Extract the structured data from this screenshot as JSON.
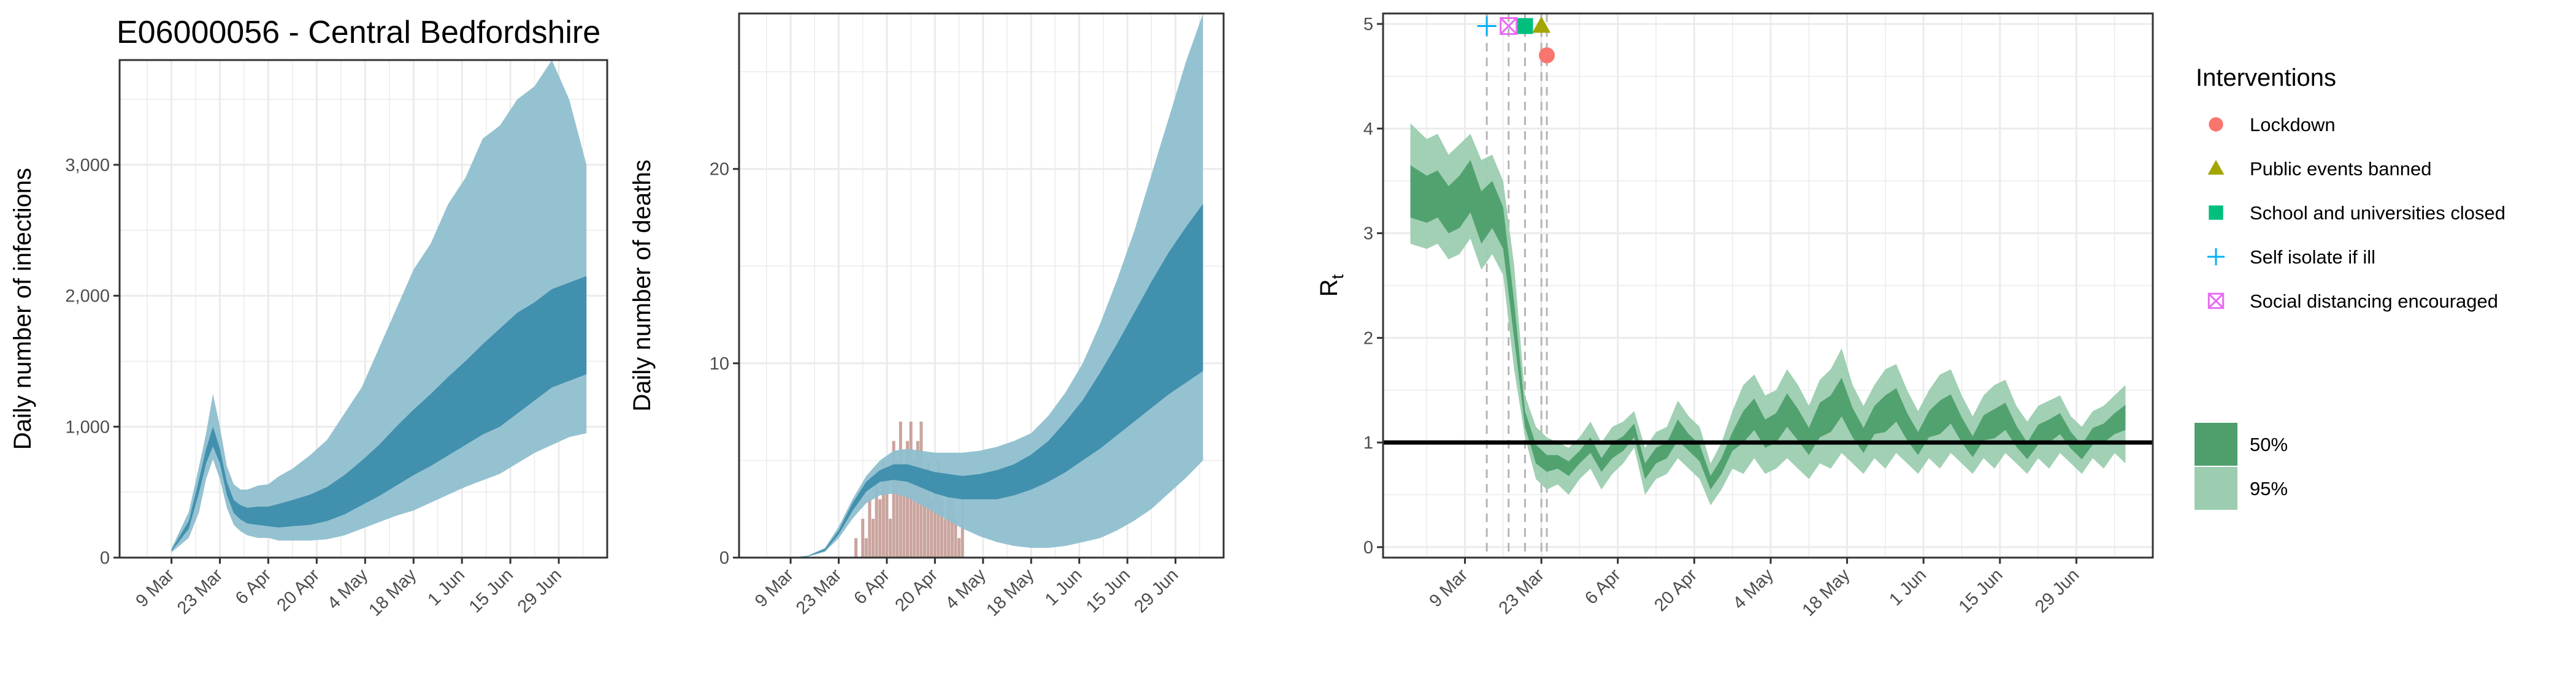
{
  "colors": {
    "infections_ci95": "#8fbfcf",
    "infections_ci50": "#3c8dac",
    "deaths_ci95": "#8fbfcf",
    "deaths_ci50": "#3c8dac",
    "deaths_bars": "#c49a93",
    "rt_ci95": "#9ccdb0",
    "rt_ci50": "#4e9f6c",
    "rt_reference": "#000000",
    "lockdown": "#f8766d",
    "public_events": "#a3a500",
    "schools": "#00bf7d",
    "self_isolate": "#00b0f6",
    "social_distancing": "#e76bf3",
    "grid": "#ebebeb",
    "panel_border": "#333333"
  },
  "chart_data": [
    {
      "id": "infections",
      "type": "area",
      "title": "E06000056 - Central Bedfordshire",
      "xlabel": "",
      "ylabel": "Daily number of infections",
      "x_ticks": [
        "9 Mar",
        "23 Mar",
        "6 Apr",
        "20 Apr",
        "4 May",
        "18 May",
        "1 Jun",
        "15 Jun",
        "29 Jun"
      ],
      "y_ticks": [
        "0",
        "1,000",
        "2,000",
        "3,000"
      ],
      "y_tick_values": [
        0,
        1000,
        2000,
        3000
      ],
      "ylim": [
        0,
        3800
      ],
      "xlim_days": [
        -15,
        126
      ],
      "grid": true,
      "series": [
        {
          "name": "95%",
          "band": "ci95",
          "x_days": [
            0,
            5,
            8,
            10,
            12,
            14,
            16,
            18,
            20,
            22,
            25,
            28,
            31,
            35,
            40,
            45,
            50,
            55,
            60,
            65,
            70,
            75,
            80,
            85,
            90,
            95,
            100,
            105,
            110,
            115,
            120
          ],
          "lower": [
            40,
            150,
            350,
            600,
            750,
            600,
            380,
            250,
            200,
            170,
            150,
            150,
            130,
            130,
            130,
            140,
            170,
            220,
            270,
            320,
            360,
            420,
            480,
            540,
            590,
            640,
            720,
            800,
            860,
            920,
            950
          ],
          "upper": [
            70,
            350,
            700,
            950,
            1250,
            1000,
            700,
            560,
            520,
            520,
            550,
            560,
            620,
            680,
            780,
            900,
            1100,
            1300,
            1600,
            1900,
            2200,
            2400,
            2700,
            2900,
            3200,
            3300,
            3500,
            3600,
            3800,
            3500,
            3000
          ]
        },
        {
          "name": "50%",
          "band": "ci50",
          "x_days": [
            0,
            5,
            8,
            10,
            12,
            14,
            16,
            18,
            20,
            22,
            25,
            28,
            31,
            35,
            40,
            45,
            50,
            55,
            60,
            65,
            70,
            75,
            80,
            85,
            90,
            95,
            100,
            105,
            110,
            115,
            120
          ],
          "lower": [
            50,
            220,
            500,
            720,
            850,
            720,
            480,
            340,
            290,
            260,
            250,
            240,
            230,
            240,
            250,
            280,
            330,
            400,
            470,
            550,
            630,
            700,
            780,
            860,
            940,
            1000,
            1100,
            1200,
            1300,
            1350,
            1400
          ],
          "upper": [
            60,
            280,
            600,
            830,
            1000,
            830,
            580,
            440,
            400,
            380,
            390,
            390,
            410,
            440,
            480,
            540,
            630,
            740,
            860,
            1000,
            1130,
            1250,
            1380,
            1500,
            1630,
            1750,
            1870,
            1950,
            2050,
            2100,
            2150
          ]
        }
      ]
    },
    {
      "id": "deaths",
      "type": "area",
      "title": "",
      "xlabel": "",
      "ylabel": "Daily number of deaths",
      "x_ticks": [
        "9 Mar",
        "23 Mar",
        "6 Apr",
        "20 Apr",
        "4 May",
        "18 May",
        "1 Jun",
        "15 Jun",
        "29 Jun"
      ],
      "y_ticks": [
        "0",
        "10",
        "20"
      ],
      "y_tick_values": [
        0,
        10,
        20
      ],
      "ylim": [
        0,
        28
      ],
      "xlim_days": [
        -15,
        126
      ],
      "grid": true,
      "series": [
        {
          "name": "95%",
          "band": "ci95",
          "x_days": [
            0,
            5,
            10,
            14,
            18,
            22,
            26,
            30,
            34,
            38,
            42,
            46,
            50,
            55,
            60,
            65,
            70,
            75,
            80,
            85,
            90,
            95,
            100,
            105,
            110,
            115,
            120
          ],
          "lower": [
            0,
            0.05,
            0.3,
            1.0,
            2.0,
            2.8,
            3.2,
            3.3,
            3.1,
            2.7,
            2.3,
            1.9,
            1.5,
            1.1,
            0.8,
            0.6,
            0.5,
            0.5,
            0.6,
            0.8,
            1.0,
            1.4,
            1.9,
            2.5,
            3.3,
            4.1,
            5.0
          ],
          "upper": [
            0,
            0.1,
            0.5,
            1.6,
            3.0,
            4.2,
            5.0,
            5.5,
            5.6,
            5.5,
            5.4,
            5.4,
            5.4,
            5.5,
            5.7,
            6.0,
            6.4,
            7.3,
            8.5,
            10.0,
            12.0,
            14.3,
            16.8,
            19.7,
            22.6,
            25.5,
            28.0
          ]
        },
        {
          "name": "50%",
          "band": "ci50",
          "x_days": [
            0,
            5,
            10,
            14,
            18,
            22,
            26,
            30,
            34,
            38,
            42,
            46,
            50,
            55,
            60,
            65,
            70,
            75,
            80,
            85,
            90,
            95,
            100,
            105,
            110,
            115,
            120
          ],
          "lower": [
            0,
            0.06,
            0.35,
            1.2,
            2.4,
            3.4,
            3.9,
            4.0,
            3.9,
            3.6,
            3.3,
            3.1,
            3.0,
            3.0,
            3.0,
            3.2,
            3.5,
            3.9,
            4.4,
            5.0,
            5.6,
            6.3,
            7.0,
            7.7,
            8.4,
            9.0,
            9.6
          ],
          "upper": [
            0,
            0.08,
            0.45,
            1.4,
            2.8,
            3.9,
            4.5,
            4.8,
            4.8,
            4.6,
            4.4,
            4.3,
            4.2,
            4.3,
            4.5,
            4.8,
            5.3,
            6.0,
            7.0,
            8.1,
            9.5,
            11.0,
            12.6,
            14.2,
            15.7,
            17.0,
            18.2
          ]
        }
      ],
      "bars": {
        "name": "Observed deaths",
        "x_days": [
          19,
          20,
          21,
          22,
          23,
          24,
          25,
          26,
          27,
          28,
          29,
          30,
          31,
          32,
          33,
          34,
          35,
          36,
          37,
          38,
          39,
          40,
          41,
          42,
          43,
          44,
          45,
          46,
          47,
          48,
          49,
          50
        ],
        "values": [
          1,
          0,
          2,
          1,
          3,
          2,
          4,
          3,
          5,
          4,
          2,
          6,
          5,
          7,
          4,
          6,
          7,
          5,
          6,
          7,
          4,
          5,
          3,
          4,
          5,
          3,
          2,
          4,
          3,
          2,
          1,
          4
        ]
      }
    },
    {
      "id": "rt",
      "type": "area",
      "title": "",
      "xlabel": "",
      "ylabel": "R",
      "ylabel_subscript": "t",
      "x_ticks": [
        "9 Mar",
        "23 Mar",
        "6 Apr",
        "20 Apr",
        "4 May",
        "18 May",
        "1 Jun",
        "15 Jun",
        "29 Jun"
      ],
      "y_ticks": [
        "0",
        "1",
        "2",
        "3",
        "4",
        "5"
      ],
      "y_tick_values": [
        0,
        1,
        2,
        3,
        4,
        5
      ],
      "ylim": [
        -0.1,
        5.1
      ],
      "xlim_days": [
        -15,
        126
      ],
      "grid": true,
      "reference_line": 1,
      "series": [
        {
          "name": "95%",
          "band": "ci95",
          "x_days": [
            -10,
            -7,
            -5,
            -3,
            -1,
            1,
            3,
            5,
            7,
            9,
            11,
            13,
            15,
            17,
            19,
            21,
            23,
            25,
            27,
            29,
            31,
            33,
            35,
            37,
            39,
            41,
            43,
            45,
            47,
            49,
            51,
            53,
            55,
            57,
            59,
            61,
            63,
            65,
            67,
            69,
            71,
            73,
            75,
            77,
            79,
            81,
            83,
            85,
            87,
            89,
            91,
            93,
            95,
            97,
            99,
            101,
            103,
            105,
            107,
            109,
            111,
            113,
            115,
            117,
            119,
            121
          ],
          "lower": [
            2.9,
            2.85,
            2.9,
            2.75,
            2.8,
            2.95,
            2.65,
            2.8,
            2.6,
            1.7,
            1.05,
            0.65,
            0.55,
            0.6,
            0.5,
            0.65,
            0.75,
            0.55,
            0.7,
            0.8,
            0.95,
            0.5,
            0.65,
            0.7,
            0.85,
            0.75,
            0.65,
            0.4,
            0.55,
            0.75,
            0.7,
            0.85,
            0.7,
            0.75,
            0.85,
            0.75,
            0.65,
            0.8,
            0.75,
            0.9,
            0.8,
            0.7,
            0.85,
            0.75,
            0.9,
            0.8,
            0.7,
            0.85,
            0.75,
            0.9,
            0.8,
            0.7,
            0.85,
            0.75,
            0.9,
            0.8,
            0.7,
            0.85,
            0.75,
            0.9,
            0.8,
            0.7,
            0.85,
            0.75,
            0.9,
            0.8
          ],
          "upper": [
            4.05,
            3.9,
            3.95,
            3.75,
            3.85,
            3.95,
            3.7,
            3.75,
            3.5,
            2.7,
            1.45,
            1.15,
            1.05,
            1.0,
            0.95,
            1.05,
            1.2,
            1.0,
            1.15,
            1.2,
            1.3,
            0.95,
            1.1,
            1.15,
            1.4,
            1.25,
            1.15,
            0.8,
            1.0,
            1.3,
            1.55,
            1.65,
            1.45,
            1.5,
            1.7,
            1.55,
            1.35,
            1.6,
            1.7,
            1.9,
            1.55,
            1.35,
            1.55,
            1.7,
            1.75,
            1.5,
            1.3,
            1.5,
            1.65,
            1.7,
            1.45,
            1.25,
            1.45,
            1.55,
            1.6,
            1.35,
            1.2,
            1.35,
            1.4,
            1.45,
            1.25,
            1.15,
            1.3,
            1.35,
            1.45,
            1.55
          ]
        },
        {
          "name": "50%",
          "band": "ci50",
          "x_days": [
            -10,
            -7,
            -5,
            -3,
            -1,
            1,
            3,
            5,
            7,
            9,
            11,
            13,
            15,
            17,
            19,
            21,
            23,
            25,
            27,
            29,
            31,
            33,
            35,
            37,
            39,
            41,
            43,
            45,
            47,
            49,
            51,
            53,
            55,
            57,
            59,
            61,
            63,
            65,
            67,
            69,
            71,
            73,
            75,
            77,
            79,
            81,
            83,
            85,
            87,
            89,
            91,
            93,
            95,
            97,
            99,
            101,
            103,
            105,
            107,
            109,
            111,
            113,
            115,
            117,
            119,
            121
          ],
          "lower": [
            3.15,
            3.1,
            3.15,
            3.0,
            3.05,
            3.2,
            2.9,
            3.05,
            2.85,
            2.0,
            1.15,
            0.8,
            0.72,
            0.75,
            0.68,
            0.8,
            0.9,
            0.72,
            0.85,
            0.92,
            1.05,
            0.65,
            0.8,
            0.85,
            1.02,
            0.92,
            0.82,
            0.55,
            0.7,
            0.92,
            1.0,
            1.12,
            0.95,
            1.0,
            1.15,
            1.02,
            0.88,
            1.05,
            1.1,
            1.25,
            1.05,
            0.9,
            1.08,
            1.1,
            1.2,
            1.02,
            0.88,
            1.05,
            1.08,
            1.18,
            1.0,
            0.86,
            1.02,
            1.04,
            1.12,
            0.96,
            0.84,
            0.98,
            1.0,
            1.08,
            0.94,
            0.84,
            0.98,
            1.0,
            1.08,
            1.12
          ],
          "upper": [
            3.65,
            3.55,
            3.6,
            3.45,
            3.55,
            3.7,
            3.4,
            3.5,
            3.25,
            2.35,
            1.3,
            0.98,
            0.88,
            0.88,
            0.82,
            0.92,
            1.05,
            0.85,
            1.0,
            1.06,
            1.18,
            0.8,
            0.95,
            1.0,
            1.22,
            1.08,
            0.98,
            0.68,
            0.85,
            1.1,
            1.3,
            1.42,
            1.22,
            1.28,
            1.47,
            1.32,
            1.14,
            1.38,
            1.45,
            1.62,
            1.33,
            1.14,
            1.35,
            1.45,
            1.52,
            1.28,
            1.1,
            1.3,
            1.4,
            1.46,
            1.24,
            1.06,
            1.26,
            1.32,
            1.38,
            1.16,
            1.0,
            1.17,
            1.22,
            1.28,
            1.1,
            0.98,
            1.14,
            1.18,
            1.28,
            1.36
          ]
        }
      ],
      "interventions": [
        {
          "name": "Lockdown",
          "key": "lockdown",
          "shape": "circle",
          "x_day": 15,
          "y": 4.7
        },
        {
          "name": "Public events banned",
          "key": "public_events",
          "shape": "triangle",
          "x_day": 14,
          "y": 4.98
        },
        {
          "name": "School and universities closed",
          "key": "schools",
          "shape": "square",
          "x_day": 11,
          "y": 4.98
        },
        {
          "name": "Self isolate if ill",
          "key": "self_isolate",
          "shape": "plus",
          "x_day": 4,
          "y": 4.98
        },
        {
          "name": "Social distancing encouraged",
          "key": "social_distancing",
          "shape": "boxcross",
          "x_day": 8,
          "y": 4.98
        }
      ]
    }
  ],
  "legend": {
    "interventions_title": "Interventions",
    "interventions": [
      {
        "label": "Lockdown",
        "key": "lockdown",
        "shape": "circle"
      },
      {
        "label": "Public events banned",
        "key": "public_events",
        "shape": "triangle"
      },
      {
        "label": "School and universities closed",
        "key": "schools",
        "shape": "square"
      },
      {
        "label": "Self isolate if ill",
        "key": "self_isolate",
        "shape": "plus"
      },
      {
        "label": "Social distancing encouraged",
        "key": "social_distancing",
        "shape": "boxcross"
      }
    ],
    "ci": [
      {
        "label": "50%",
        "key": "rt_ci50"
      },
      {
        "label": "95%",
        "key": "rt_ci95"
      }
    ]
  }
}
